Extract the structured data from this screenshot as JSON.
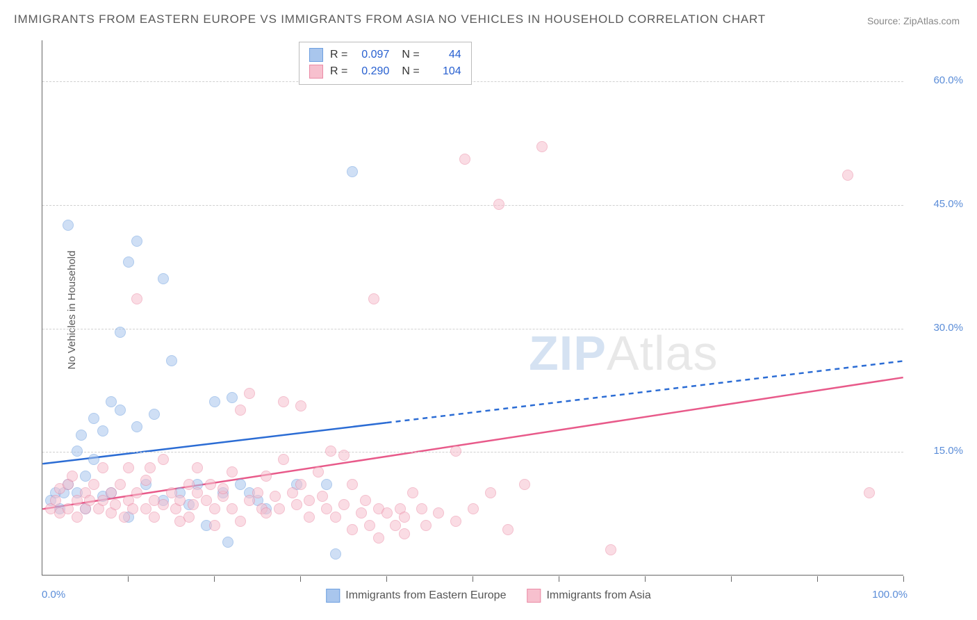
{
  "title": "IMMIGRANTS FROM EASTERN EUROPE VS IMMIGRANTS FROM ASIA NO VEHICLES IN HOUSEHOLD CORRELATION CHART",
  "source": "Source: ZipAtlas.com",
  "y_axis_label": "No Vehicles in Household",
  "watermark_a": "ZIP",
  "watermark_b": "Atlas",
  "chart": {
    "type": "scatter",
    "xlim": [
      0,
      100
    ],
    "ylim": [
      0,
      65
    ],
    "x_label_min": "0.0%",
    "x_label_max": "100.0%",
    "x_ticks": [
      10,
      20,
      30,
      40,
      50,
      60,
      70,
      80,
      90,
      100
    ],
    "y_gridlines": [
      {
        "value": 15,
        "label": "15.0%"
      },
      {
        "value": 30,
        "label": "30.0%"
      },
      {
        "value": 45,
        "label": "45.0%"
      },
      {
        "value": 60,
        "label": "60.0%"
      }
    ],
    "background_color": "#ffffff",
    "grid_color": "#d0d0d0",
    "marker_radius": 8,
    "marker_stroke_width": 1.5
  },
  "series": [
    {
      "name": "Immigrants from Eastern Europe",
      "fill": "#a9c6ed",
      "stroke": "#6d9fe0",
      "fill_alpha": 0.55,
      "trend": {
        "x1": 0,
        "y1": 13.5,
        "x2": 40,
        "y2": 18.5,
        "x2_ext": 100,
        "y2_ext": 26,
        "color": "#2b6cd4",
        "width": 2.5
      },
      "stats": {
        "R": "0.097",
        "N": "44"
      },
      "points": [
        [
          1,
          9
        ],
        [
          1.5,
          10
        ],
        [
          2,
          8
        ],
        [
          2.5,
          10
        ],
        [
          3,
          11
        ],
        [
          3,
          42.5
        ],
        [
          4,
          15
        ],
        [
          4,
          10
        ],
        [
          4.5,
          17
        ],
        [
          5,
          8
        ],
        [
          5,
          12
        ],
        [
          6,
          14
        ],
        [
          6,
          19
        ],
        [
          7,
          9.5
        ],
        [
          7,
          17.5
        ],
        [
          8,
          21
        ],
        [
          8,
          10
        ],
        [
          9,
          20
        ],
        [
          9,
          29.5
        ],
        [
          10,
          7
        ],
        [
          10,
          38
        ],
        [
          11,
          40.5
        ],
        [
          11,
          18
        ],
        [
          12,
          11
        ],
        [
          13,
          19.5
        ],
        [
          14,
          9
        ],
        [
          14,
          36
        ],
        [
          15,
          26
        ],
        [
          16,
          10
        ],
        [
          17,
          8.5
        ],
        [
          18,
          11
        ],
        [
          19,
          6
        ],
        [
          20,
          21
        ],
        [
          21,
          10
        ],
        [
          21.5,
          4
        ],
        [
          22,
          21.5
        ],
        [
          23,
          11
        ],
        [
          24,
          10
        ],
        [
          25,
          9
        ],
        [
          26,
          8
        ],
        [
          29.5,
          11
        ],
        [
          33,
          11
        ],
        [
          34,
          2.5
        ],
        [
          36,
          49
        ]
      ]
    },
    {
      "name": "Immigrants from Asia",
      "fill": "#f7c0ce",
      "stroke": "#ea8ba6",
      "fill_alpha": 0.55,
      "trend": {
        "x1": 0,
        "y1": 8,
        "x2": 100,
        "y2": 24,
        "color": "#e85a8a",
        "width": 2.5
      },
      "stats": {
        "R": "0.290",
        "N": "104"
      },
      "points": [
        [
          1,
          8
        ],
        [
          1.5,
          9
        ],
        [
          2,
          7.5
        ],
        [
          2,
          10.5
        ],
        [
          3,
          8
        ],
        [
          3,
          11
        ],
        [
          3.5,
          12
        ],
        [
          4,
          9
        ],
        [
          4,
          7
        ],
        [
          5,
          10
        ],
        [
          5,
          8
        ],
        [
          5.5,
          9
        ],
        [
          6,
          11
        ],
        [
          6.5,
          8
        ],
        [
          7,
          13
        ],
        [
          7,
          9
        ],
        [
          8,
          7.5
        ],
        [
          8,
          10
        ],
        [
          8.5,
          8.5
        ],
        [
          9,
          11
        ],
        [
          9.5,
          7
        ],
        [
          10,
          9
        ],
        [
          10,
          13
        ],
        [
          10.5,
          8
        ],
        [
          11,
          10
        ],
        [
          11,
          33.5
        ],
        [
          12,
          8
        ],
        [
          12,
          11.5
        ],
        [
          12.5,
          13
        ],
        [
          13,
          9
        ],
        [
          13,
          7
        ],
        [
          14,
          8.5
        ],
        [
          14,
          14
        ],
        [
          15,
          10
        ],
        [
          15.5,
          8
        ],
        [
          16,
          6.5
        ],
        [
          16,
          9
        ],
        [
          17,
          7
        ],
        [
          17,
          11
        ],
        [
          17.5,
          8.5
        ],
        [
          18,
          10
        ],
        [
          18,
          13
        ],
        [
          19,
          9
        ],
        [
          19.5,
          11
        ],
        [
          20,
          8
        ],
        [
          20,
          6
        ],
        [
          21,
          9.5
        ],
        [
          21,
          10.5
        ],
        [
          22,
          12.5
        ],
        [
          22,
          8
        ],
        [
          23,
          20
        ],
        [
          23,
          6.5
        ],
        [
          24,
          22
        ],
        [
          24,
          9
        ],
        [
          25,
          10
        ],
        [
          25.5,
          8
        ],
        [
          26,
          12
        ],
        [
          26,
          7.5
        ],
        [
          27,
          9.5
        ],
        [
          27.5,
          8
        ],
        [
          28,
          14
        ],
        [
          28,
          21
        ],
        [
          29,
          10
        ],
        [
          29.5,
          8.5
        ],
        [
          30,
          20.5
        ],
        [
          30,
          11
        ],
        [
          31,
          9
        ],
        [
          31,
          7
        ],
        [
          32,
          12.5
        ],
        [
          32.5,
          9.5
        ],
        [
          33,
          8
        ],
        [
          33.5,
          15
        ],
        [
          34,
          7
        ],
        [
          35,
          14.5
        ],
        [
          35,
          8.5
        ],
        [
          36,
          11
        ],
        [
          36,
          5.5
        ],
        [
          37,
          7.5
        ],
        [
          37.5,
          9
        ],
        [
          38,
          6
        ],
        [
          38.5,
          33.5
        ],
        [
          39,
          8
        ],
        [
          39,
          4.5
        ],
        [
          40,
          7.5
        ],
        [
          41,
          6
        ],
        [
          41.5,
          8
        ],
        [
          42,
          7
        ],
        [
          42,
          5
        ],
        [
          43,
          10
        ],
        [
          44,
          8
        ],
        [
          44.5,
          6
        ],
        [
          46,
          7.5
        ],
        [
          48,
          6.5
        ],
        [
          48,
          15
        ],
        [
          49,
          50.5
        ],
        [
          50,
          8
        ],
        [
          52,
          10
        ],
        [
          53,
          45
        ],
        [
          54,
          5.5
        ],
        [
          56,
          11
        ],
        [
          58,
          52
        ],
        [
          66,
          3
        ],
        [
          93.5,
          48.5
        ],
        [
          96,
          10
        ]
      ]
    }
  ],
  "stats_labels": {
    "R": "R =",
    "N": "N ="
  },
  "bottom_legend": [
    "Immigrants from Eastern Europe",
    "Immigrants from Asia"
  ]
}
